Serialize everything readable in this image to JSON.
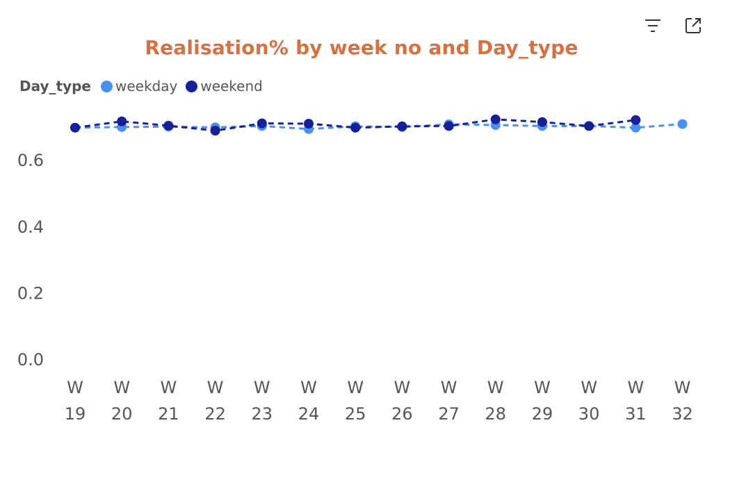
{
  "chart_data": {
    "type": "line",
    "title": "Realisation% by week no and Day_type",
    "legend_title": "Day_type",
    "legend_position": "top-left",
    "xlabel": "",
    "ylabel": "",
    "ylim": [
      0,
      0.74
    ],
    "yticks": [
      0.0,
      0.2,
      0.4,
      0.6
    ],
    "ytick_labels": [
      "0.0",
      "0.2",
      "0.4",
      "0.6"
    ],
    "grid": false,
    "categories": [
      "W 19",
      "W 20",
      "W 21",
      "W 22",
      "W 23",
      "W 24",
      "W 25",
      "W 26",
      "W 27",
      "W 28",
      "W 29",
      "W 30",
      "W 31",
      "W 32"
    ],
    "category_lines": [
      [
        "W",
        "19"
      ],
      [
        "W",
        "20"
      ],
      [
        "W",
        "21"
      ],
      [
        "W",
        "22"
      ],
      [
        "W",
        "23"
      ],
      [
        "W",
        "24"
      ],
      [
        "W",
        "25"
      ],
      [
        "W",
        "26"
      ],
      [
        "W",
        "27"
      ],
      [
        "W",
        "28"
      ],
      [
        "W",
        "29"
      ],
      [
        "W",
        "30"
      ],
      [
        "W",
        "31"
      ],
      [
        "W",
        "32"
      ]
    ],
    "series": [
      {
        "name": "weekday",
        "color": "#4A90F0",
        "line_style": "dashed",
        "values": [
          0.697,
          0.699,
          0.7,
          0.698,
          0.702,
          0.693,
          0.701,
          0.699,
          0.707,
          0.705,
          0.702,
          0.702,
          0.697,
          0.708
        ]
      },
      {
        "name": "weekend",
        "color": "#16209A",
        "line_style": "dashed",
        "values": [
          0.697,
          0.716,
          0.703,
          0.688,
          0.71,
          0.709,
          0.697,
          0.701,
          0.702,
          0.722,
          0.714,
          0.702,
          0.72,
          null
        ]
      }
    ]
  },
  "toolbar": {
    "filter_icon": "filter-lines-icon",
    "focus_icon": "expand-focus-icon"
  },
  "colors": {
    "title": "#D9703F",
    "axis_text": "#555555"
  }
}
